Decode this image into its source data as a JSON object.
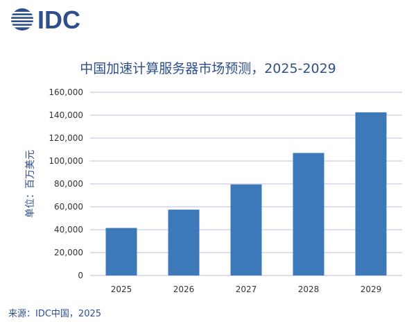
{
  "brand": {
    "logo_text": "IDC",
    "color": "#2d4f8e"
  },
  "chart_data": {
    "type": "bar",
    "title": "中国加速计算服务器市场预测，2025-2029",
    "xlabel": "",
    "ylabel": "单位：百万美元",
    "categories": [
      "2025",
      "2026",
      "2027",
      "2028",
      "2029"
    ],
    "values": [
      41500,
      57500,
      79500,
      107000,
      142500
    ],
    "ylim": [
      0,
      160000
    ],
    "yticks": [
      0,
      20000,
      40000,
      60000,
      80000,
      100000,
      120000,
      140000,
      160000
    ],
    "ytick_labels": [
      "0",
      "20,000",
      "40,000",
      "60,000",
      "80,000",
      "100,000",
      "120,000",
      "140,000",
      "160,000"
    ],
    "grid": true,
    "bar_color": "#3d78b8",
    "grid_color": "#bdbde0"
  },
  "source": "来源：IDC中国，2025"
}
